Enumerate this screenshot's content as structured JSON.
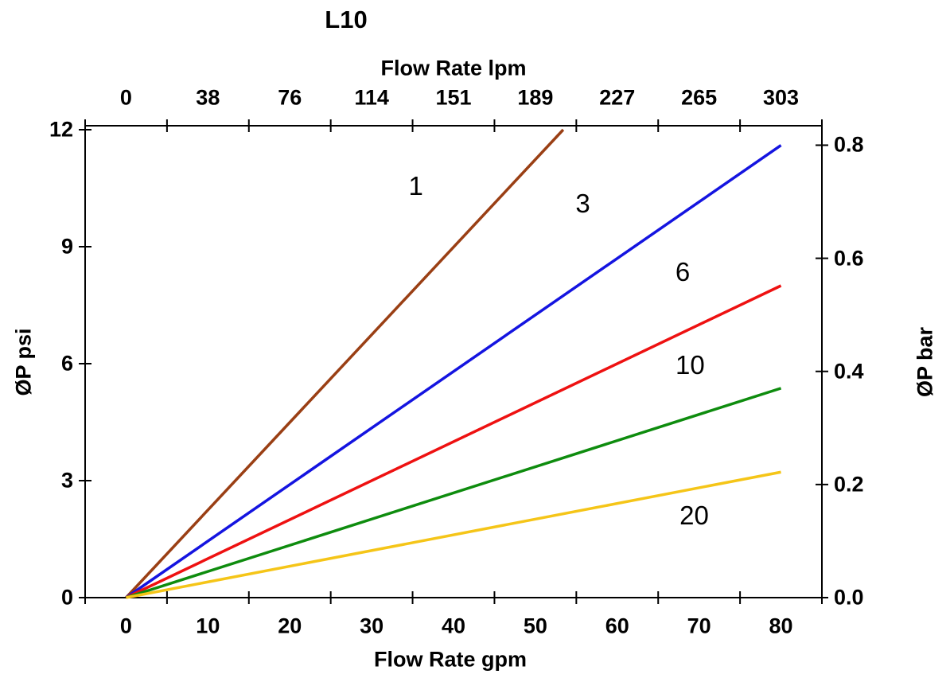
{
  "title": "L10",
  "chart_data": {
    "type": "line",
    "title": "L10",
    "grid": false,
    "legend": "labels placed on lines",
    "top_axis": {
      "label": "Flow Rate lpm",
      "tick_labels": [
        "0",
        "38",
        "76",
        "114",
        "151",
        "189",
        "227",
        "265",
        "303"
      ],
      "tick_label_positions_gpm": [
        0,
        10,
        20,
        30,
        40,
        50,
        60,
        70,
        80
      ],
      "tickmark_positions_gpm": [
        -5,
        5,
        15,
        25,
        35,
        45,
        55,
        65,
        75,
        85
      ]
    },
    "bottom_axis": {
      "label": "Flow Rate gpm",
      "tick_labels": [
        "0",
        "10",
        "20",
        "30",
        "40",
        "50",
        "60",
        "70",
        "80"
      ],
      "tick_label_positions_gpm": [
        0,
        10,
        20,
        30,
        40,
        50,
        60,
        70,
        80
      ],
      "tickmark_positions_gpm": [
        -5,
        5,
        15,
        25,
        35,
        45,
        55,
        65,
        75,
        85
      ],
      "range_gpm": [
        -5,
        85
      ]
    },
    "left_axis": {
      "label": "ØP psi",
      "tick_labels": [
        "0",
        "3",
        "6",
        "9",
        "12"
      ],
      "tick_positions_psi": [
        0,
        3,
        6,
        9,
        12
      ],
      "range_psi": [
        0,
        12.1
      ]
    },
    "right_axis": {
      "label": "ØP bar",
      "tick_labels": [
        "0.0",
        "0.2",
        "0.4",
        "0.6",
        "0.8"
      ],
      "tick_positions_bar": [
        0,
        0.2,
        0.4,
        0.6,
        0.8
      ],
      "psi_per_bar": 14.5038
    },
    "series": [
      {
        "name": "1",
        "color": "#9A3F14",
        "x_gpm": [
          0,
          53.4
        ],
        "y_psi": [
          0,
          12.0
        ],
        "label_pos": {
          "gpm": 35.4,
          "psi": 10.55
        }
      },
      {
        "name": "3",
        "color": "#1414E0",
        "x_gpm": [
          0,
          80
        ],
        "y_psi": [
          0,
          11.6
        ],
        "label_pos": {
          "gpm": 55.8,
          "psi": 10.1
        }
      },
      {
        "name": "6",
        "color": "#EE1111",
        "x_gpm": [
          0,
          80
        ],
        "y_psi": [
          0,
          8.0
        ],
        "label_pos": {
          "gpm": 68.0,
          "psi": 8.35
        }
      },
      {
        "name": "10",
        "color": "#0E8C0E",
        "x_gpm": [
          0,
          80
        ],
        "y_psi": [
          0,
          5.37
        ],
        "label_pos": {
          "gpm": 68.9,
          "psi": 5.95
        }
      },
      {
        "name": "20",
        "color": "#F5C518",
        "x_gpm": [
          0,
          80
        ],
        "y_psi": [
          0,
          3.22
        ],
        "label_pos": {
          "gpm": 69.4,
          "psi": 2.1
        }
      }
    ],
    "axis_color": "#000000",
    "background_color": "#ffffff"
  }
}
